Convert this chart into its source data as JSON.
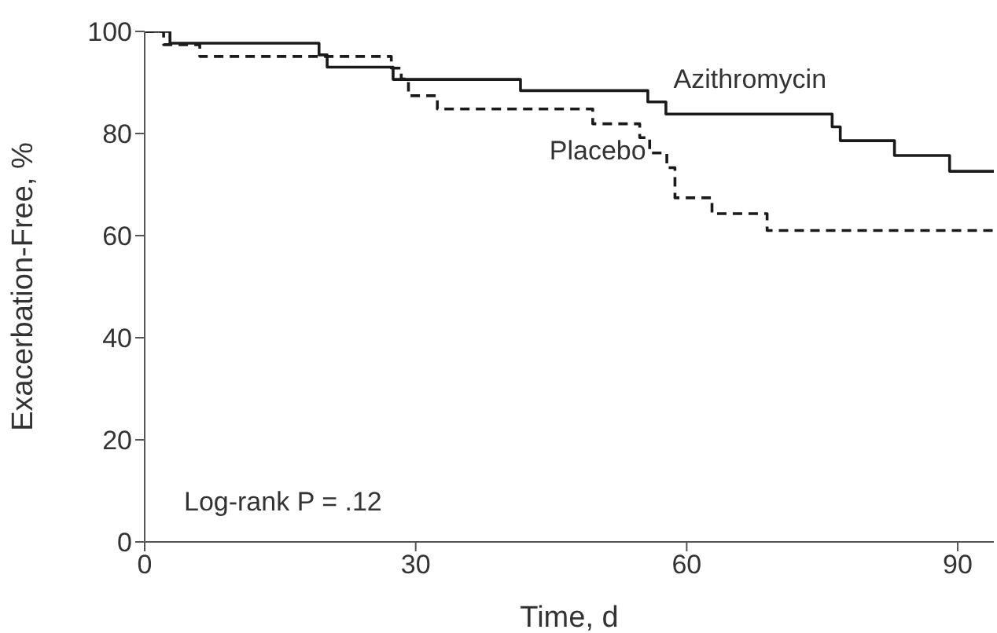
{
  "chart_data": {
    "type": "step",
    "xlabel": "Time, d",
    "ylabel": "Exacerbation-Free, %",
    "xlim": [
      0,
      94
    ],
    "xticks": [
      0,
      30,
      60,
      90
    ],
    "ylim": [
      0,
      100
    ],
    "yticks": [
      0,
      20,
      40,
      60,
      80,
      100
    ],
    "grid": false,
    "legend": false,
    "series": [
      {
        "name": "Azithromycin",
        "color": "#1a1a1a",
        "line_style": "solid",
        "x": [
          0,
          2.8,
          19.3,
          20.2,
          27.5,
          41.6,
          55.7,
          57.7,
          76.1,
          77,
          83,
          89.1,
          94
        ],
        "values": [
          100,
          97.7,
          95.4,
          93,
          90.6,
          88.4,
          86.2,
          83.8,
          81.3,
          78.6,
          75.7,
          72.6,
          72.6
        ]
      },
      {
        "name": "Placebo",
        "color": "#1a1a1a",
        "line_style": "dashed",
        "x": [
          0,
          2.1,
          6.1,
          27.3,
          28.4,
          29.2,
          32.4,
          49.6,
          54.8,
          55.9,
          57.8,
          58.7,
          62.8,
          68.9,
          94
        ],
        "values": [
          100,
          97.4,
          95.1,
          92.8,
          90.7,
          87.4,
          84.8,
          81.9,
          79.2,
          76.2,
          73.3,
          67.4,
          64.3,
          61,
          61
        ]
      }
    ],
    "annotations": [
      "Log-rank P = .12"
    ]
  }
}
